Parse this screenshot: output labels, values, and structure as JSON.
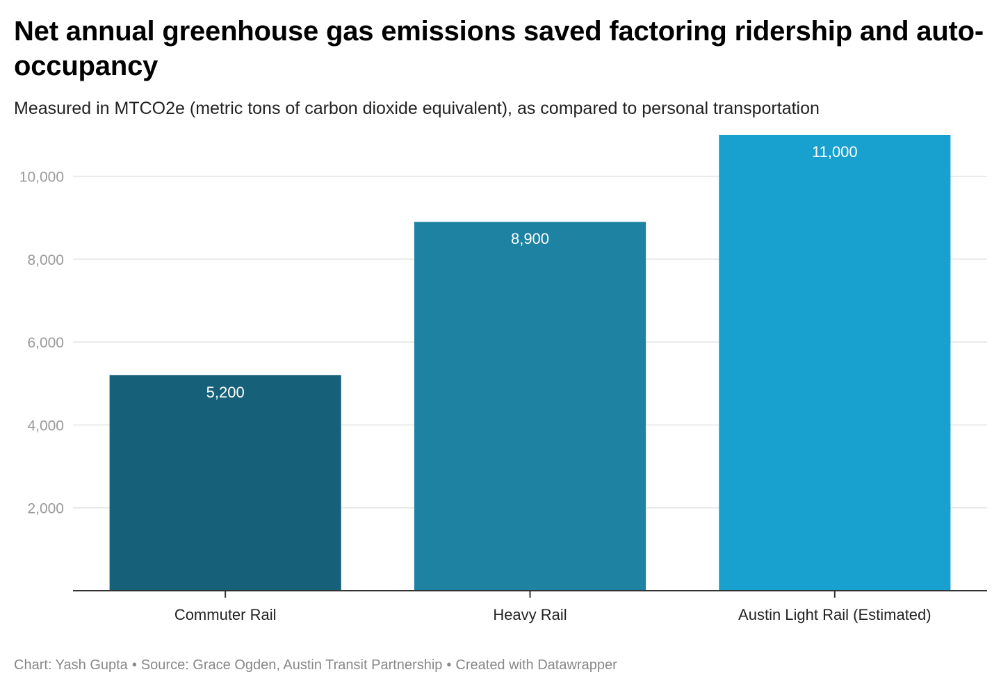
{
  "title": "Net annual greenhouse gas emissions saved factoring ridership and auto-occupancy",
  "subtitle": "Measured in MTCO2e (metric tons of carbon dioxide equivalent), as compared to personal transportation",
  "footer": {
    "chart_credit": "Chart: Yash Gupta",
    "source": "Source: Grace Ogden, Austin Transit Partnership",
    "tool": "Created with Datawrapper",
    "separator": "•"
  },
  "chart_data": {
    "type": "bar",
    "categories": [
      "Commuter Rail",
      "Heavy Rail",
      "Austin Light Rail (Estimated)"
    ],
    "values": [
      5200,
      8900,
      11000
    ],
    "value_labels": [
      "5,200",
      "8,900",
      "11,000"
    ],
    "bar_colors": [
      "#17607a",
      "#1e82a3",
      "#18a1ce"
    ],
    "yticks": [
      2000,
      4000,
      6000,
      8000,
      10000
    ],
    "ytick_labels": [
      "2,000",
      "4,000",
      "6,000",
      "8,000",
      "10,000"
    ],
    "ylim": [
      0,
      11000
    ],
    "grid": true,
    "xlabel": "",
    "ylabel": ""
  }
}
